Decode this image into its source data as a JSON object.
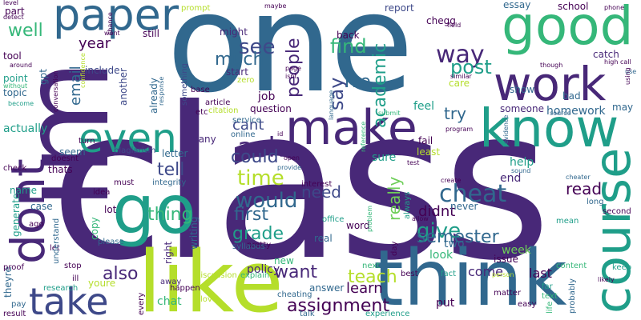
{
  "words": {
    "class": "class",
    "one": "one",
    "im": "im",
    "like": "like",
    "think": "think",
    "make": "make",
    "know": "know",
    "go": "go",
    "work": "work",
    "good": "good",
    "course": "course",
    "dont": "dont",
    "take": "take",
    "even": "even",
    "paper": "paper",
    "assignment": "assignment",
    "time": "time",
    "cheat": "cheat",
    "way": "way",
    "would": "would",
    "ask": "ask",
    "see": "see",
    "post": "post",
    "tell": "tell",
    "give": "give",
    "semester": "semester",
    "also": "also",
    "teach": "teach",
    "thing": "thing",
    "say": "say",
    "could": "could",
    "first": "first",
    "grade": "grade",
    "find": "find",
    "much": "much",
    "cant": "cant",
    "need": "need",
    "want": "want",
    "learn": "learn",
    "academic": "academic",
    "ive": "ive",
    "people": "people",
    "really": "really",
    "didnt": "didnt",
    "read": "read",
    "try": "try",
    "well": "well",
    "email": "email",
    "year": "year",
    "policy": "policy",
    "feel": "feel",
    "last": "last",
    "come": "come",
    "job": "job",
    "homework": "homework",
    "someone": "someone",
    "help": "help",
    "week": "week",
    "sure": "sure",
    "end": "end",
    "answer": "answer",
    "put": "put",
    "new": "new",
    "two": "two",
    "look": "look",
    "issue": "issue",
    "chat": "chat",
    "youre": "youre",
    "right": "right",
    "copy": "copy",
    "lot": "lot",
    "writing": "writing",
    "many": "many",
    "letter": "letter",
    "actually": "actually",
    "name": "name",
    "thats": "thats",
    "seem": "seem",
    "case": "case",
    "generate": "generate",
    "report": "report",
    "chegg": "chegg",
    "back": "back",
    "might": "might",
    "start": "start",
    "already": "already",
    "something": "something",
    "still": "still",
    "part": "part",
    "tool": "tool",
    "point": "point",
    "topic": "topic",
    "school": "school",
    "catch": "catch",
    "essay": "essay",
    "show": "show",
    "care": "care",
    "bad": "bad",
    "may": "may",
    "high": "high",
    "call": "call",
    "using": "using",
    "use": "use",
    "include": "include",
    "another": "another",
    "gpt": "gpt",
    "citation": "citation",
    "question": "question",
    "fail": "fail",
    "least": "least",
    "never": "never",
    "always": "always",
    "day": "day",
    "real": "real",
    "word": "word",
    "office": "office",
    "pretty": "pretty",
    "many2": "mean",
    "long": "long",
    "second": "second",
    "keep": "keep",
    "content": "content",
    "fact": "fact",
    "best": "best",
    "next": "next",
    "far": "far",
    "text": "text",
    "easy": "easy",
    "life": "life",
    "probably": "probably",
    "matter": "matter",
    "experience": "experience",
    "talk": "talk",
    "cheating": "cheating",
    "explain": "explain",
    "discussion": "discussion",
    "happen": "happen",
    "away": "away",
    "every": "every",
    "love": "love",
    "research": "research",
    "ill": "ill",
    "stop": "stop",
    "result": "result",
    "pay": "pay",
    "theyre": "theyre",
    "proof": "proof",
    "let": "let",
    "ago": "ago",
    "understand": "understand",
    "please": "please",
    "idea": "idea",
    "must": "must",
    "integrity": "integrity",
    "syllabus": "syllabus",
    "interest": "interest",
    "check": "check",
    "doesnt": "doesnt",
    "turn": "turn",
    "plagiarism": "plagiarism",
    "online": "online",
    "service": "service",
    "etc": "etc",
    "article": "article",
    "base": "base",
    "response": "response",
    "zero": "zero",
    "isnt": "isnt",
    "page": "page",
    "maybe": "maybe",
    "prompt": "prompt",
    "chance": "chance",
    "wont": "wont",
    "level": "level",
    "detect": "detect",
    "around": "around",
    "without": "without",
    "become": "become",
    "conversation": "conversation",
    "confidence": "confidence",
    "language": "language",
    "submit": "submit",
    "reference": "reference",
    "program": "program",
    "test": "test",
    "allow": "allow",
    "problem": "problem",
    "create": "create",
    "open": "open",
    "id": "id",
    "provide": "provide",
    "evidence": "evidence",
    "source": "source",
    "sound": "sound",
    "cheater": "cheater",
    "similar": "similar",
    "field": "field",
    "phone": "phone",
    "though": "though",
    "person": "person",
    "likely": "likely"
  }
}
